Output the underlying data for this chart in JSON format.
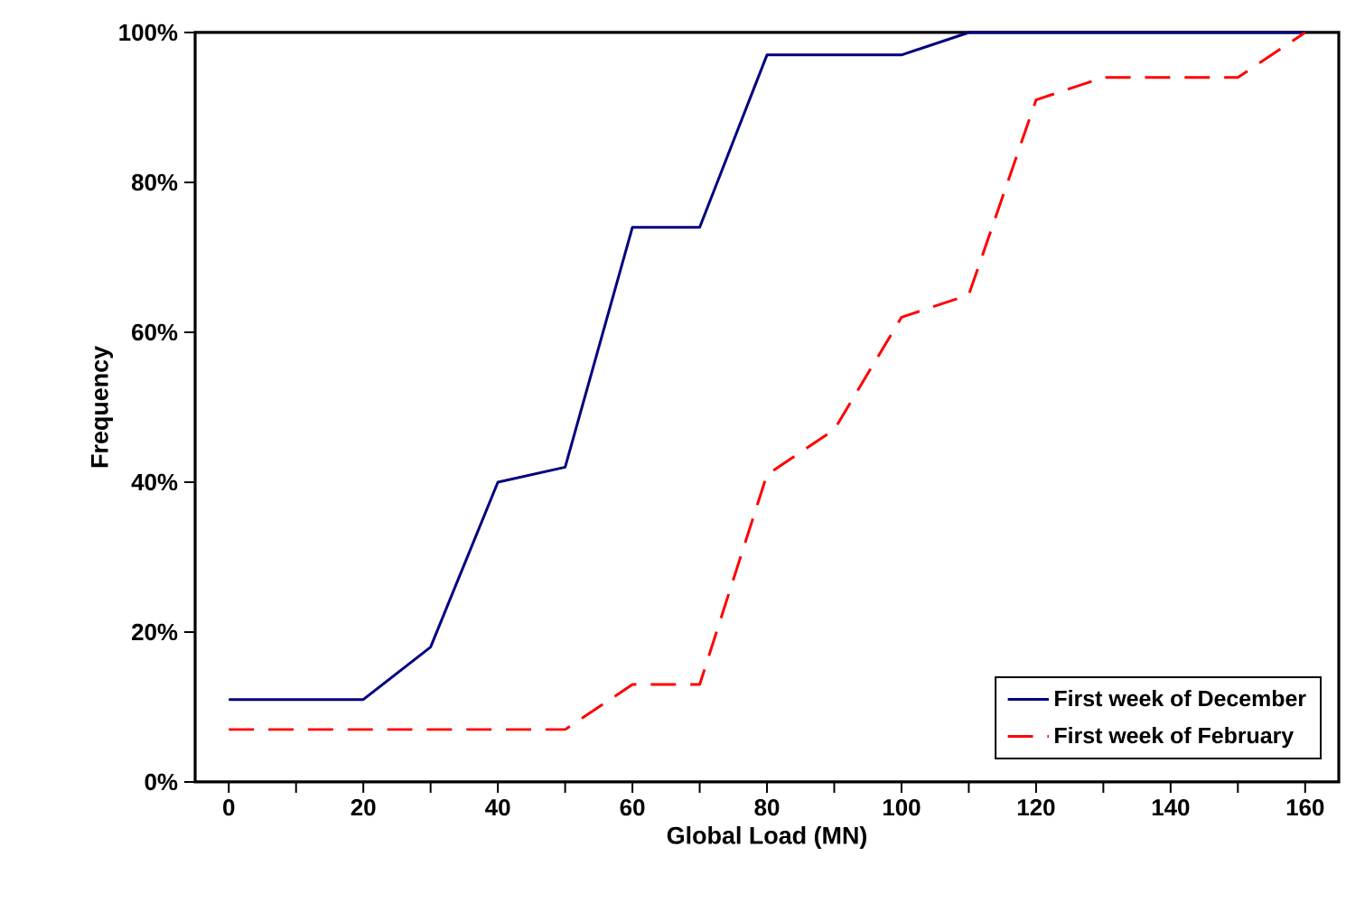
{
  "chart_data": {
    "type": "line",
    "xlabel": "Global Load (MN)",
    "ylabel": "Frequency",
    "x": [
      0,
      10,
      20,
      30,
      40,
      50,
      60,
      70,
      80,
      90,
      100,
      110,
      120,
      130,
      140,
      150,
      160
    ],
    "series": [
      {
        "name": "First week of December",
        "color": "#000080",
        "line_style": "solid",
        "values": [
          11,
          11,
          11,
          18,
          40,
          42,
          74,
          74,
          97,
          97,
          97,
          100,
          100,
          100,
          100,
          100,
          100
        ]
      },
      {
        "name": "First week of February",
        "color": "#ff0000",
        "line_style": "dashed",
        "values": [
          7,
          7,
          7,
          7,
          7,
          7,
          13,
          13,
          41,
          47,
          62,
          65,
          91,
          94,
          94,
          94,
          100
        ]
      }
    ],
    "xlim": [
      -5,
      165
    ],
    "xticks": [
      0,
      {
        "value": 10,
        "label": null
      },
      20,
      {
        "value": 30,
        "label": null
      },
      40,
      {
        "value": 50,
        "label": null
      },
      60,
      {
        "value": 70,
        "label": null
      },
      80,
      {
        "value": 90,
        "label": null
      },
      100,
      {
        "value": 110,
        "label": null
      },
      120,
      {
        "value": 130,
        "label": null
      },
      140,
      {
        "value": 150,
        "label": null
      },
      160
    ],
    "ylim": [
      0,
      100
    ],
    "yticks": [
      {
        "value": 0,
        "label": "0%"
      },
      {
        "value": 20,
        "label": "20%"
      },
      {
        "value": 40,
        "label": "40%"
      },
      {
        "value": 60,
        "label": "60%"
      },
      {
        "value": 80,
        "label": "80%"
      },
      {
        "value": 100,
        "label": "100%"
      }
    ],
    "grid": false,
    "legend": "bottom right",
    "marker": "none"
  }
}
